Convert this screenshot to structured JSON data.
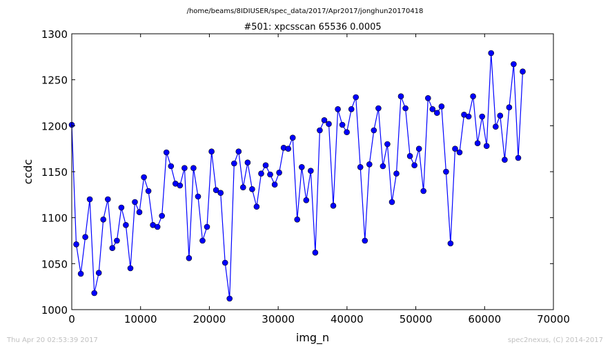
{
  "chart_data": {
    "type": "line",
    "suptitle": "/home/beams/8IDIUSER/spec_data/2017/Apr2017/jonghun20170418",
    "title": "#501: xpcsscan 65536 0.0005",
    "xlabel": "img_n",
    "ylabel": "ccdc",
    "xlim": [
      0,
      70000
    ],
    "ylim": [
      1000,
      1300
    ],
    "xticks": [
      0,
      10000,
      20000,
      30000,
      40000,
      50000,
      60000,
      70000
    ],
    "xtick_labels": [
      "0",
      "10000",
      "20000",
      "30000",
      "40000",
      "50000",
      "60000",
      "70000"
    ],
    "yticks": [
      1000,
      1050,
      1100,
      1150,
      1200,
      1250,
      1300
    ],
    "ytick_labels": [
      "1000",
      "1050",
      "1100",
      "1150",
      "1200",
      "1250",
      "1300"
    ],
    "grid": false,
    "line_color": "#0000ff",
    "marker_color": "#0000ff",
    "series": [
      {
        "x": [
          0,
          655,
          1311,
          1966,
          2621,
          3277,
          3932,
          4588,
          5243,
          5898,
          6554,
          7209,
          7864,
          8520,
          9175,
          9830,
          10486,
          11141,
          11796,
          12452,
          13107,
          13763,
          14418,
          15073,
          15729,
          16384,
          17039,
          17695,
          18350,
          19005,
          19661,
          20316,
          20972,
          21627,
          22282,
          22938,
          23593,
          24248,
          24904,
          25559,
          26214,
          26870,
          27525,
          28180,
          28836,
          29491,
          30147,
          30802,
          31457,
          32113,
          32768,
          33423,
          34079,
          34734,
          35389,
          36045,
          36700,
          37356,
          38011,
          38666,
          39322,
          39977,
          40632,
          41288,
          41943,
          42598,
          43254,
          43909,
          44564,
          45220,
          45875,
          46531,
          47186,
          47841,
          48497,
          49152,
          49807,
          50463,
          51118,
          51773,
          52429,
          53084,
          53740,
          54395,
          55050,
          55706,
          56361,
          57016,
          57672,
          58327,
          58982,
          59638,
          60293,
          60948,
          61604,
          62259,
          62915,
          63570,
          64225,
          64881,
          65536
        ],
        "y": [
          1201,
          1071,
          1039,
          1079,
          1120,
          1018,
          1040,
          1098,
          1120,
          1067,
          1075,
          1111,
          1092,
          1045,
          1117,
          1106,
          1144,
          1129,
          1092,
          1090,
          1102,
          1171,
          1156,
          1137,
          1135,
          1154,
          1056,
          1154,
          1123,
          1075,
          1090,
          1172,
          1130,
          1127,
          1051,
          1012,
          1159,
          1172,
          1133,
          1160,
          1131,
          1112,
          1148,
          1157,
          1147,
          1136,
          1149,
          1176,
          1175,
          1187,
          1098,
          1155,
          1119,
          1151,
          1062,
          1195,
          1206,
          1202,
          1113,
          1218,
          1201,
          1193,
          1218,
          1231,
          1155,
          1075,
          1158,
          1195,
          1219,
          1156,
          1180,
          1117,
          1148,
          1232,
          1219,
          1167,
          1157,
          1175,
          1129,
          1230,
          1218,
          1214,
          1221,
          1150,
          1072,
          1175,
          1171,
          1212,
          1210,
          1232,
          1181,
          1210,
          1178,
          1279,
          1199,
          1211,
          1163,
          1220,
          1267,
          1165,
          1259
        ]
      }
    ]
  },
  "footer": {
    "timestamp": "Thu Apr 20 02:53:39 2017",
    "credit": "spec2nexus, (C) 2014-2017"
  }
}
